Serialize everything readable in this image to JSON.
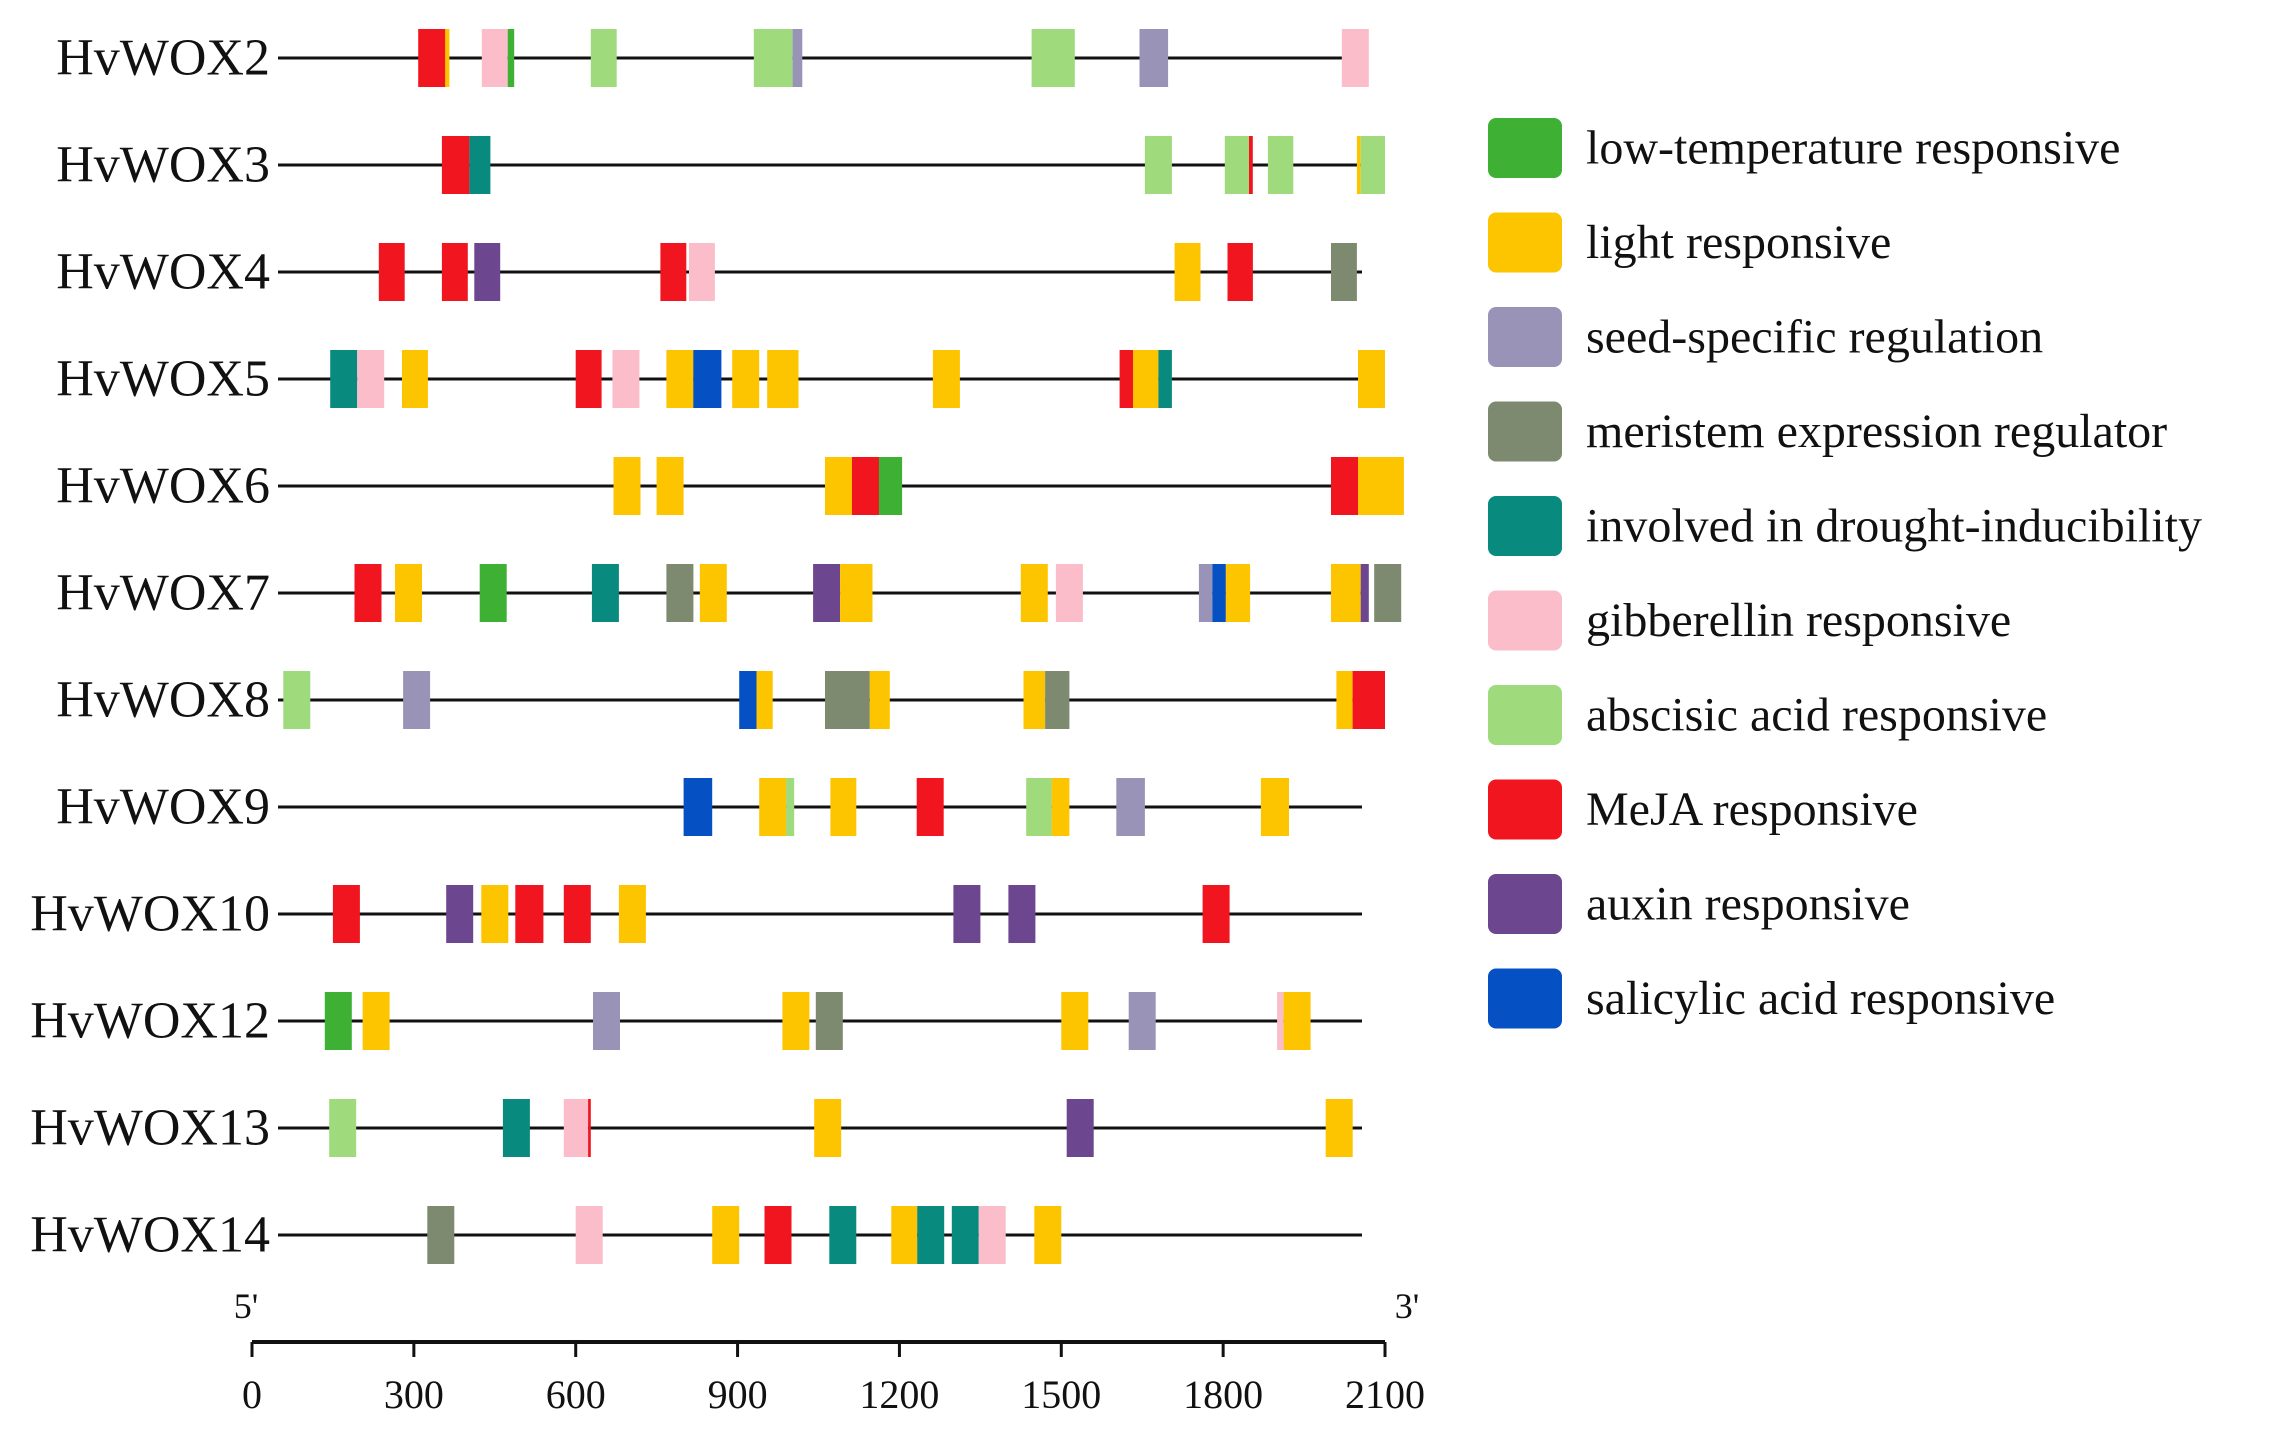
{
  "axis": {
    "start_label": "5'",
    "end_label": "3'",
    "range": [
      0,
      2100
    ],
    "ticks": [
      "0",
      "300",
      "600",
      "900",
      "1200",
      "1500",
      "1800",
      "2100"
    ]
  },
  "categories": [
    {
      "key": "lowtemp",
      "label": "low-temperature responsive",
      "color": "#3EB135"
    },
    {
      "key": "light",
      "label": "light responsive",
      "color": "#FDC400"
    },
    {
      "key": "seed",
      "label": "seed-specific regulation",
      "color": "#9993B8"
    },
    {
      "key": "meristem",
      "label": "meristem expression regulator",
      "color": "#7D8A70"
    },
    {
      "key": "drought",
      "label": "involved in drought-inducibility",
      "color": "#098A7E"
    },
    {
      "key": "gibberellin",
      "label": "gibberellin responsive",
      "color": "#FCBDCB"
    },
    {
      "key": "aba",
      "label": "abscisic acid responsive",
      "color": "#9FDA7C"
    },
    {
      "key": "meja",
      "label": "MeJA responsive",
      "color": "#F0151F"
    },
    {
      "key": "auxin",
      "label": "auxin responsive",
      "color": "#6C468E"
    },
    {
      "key": "salicylic",
      "label": "salicylic acid responsive",
      "color": "#0550C3"
    }
  ],
  "genes": [
    {
      "name": "HvWOX2",
      "elements": [
        {
          "c": "meja",
          "s": 308,
          "e": 365
        },
        {
          "c": "light",
          "s": 358,
          "e": 366
        },
        {
          "c": "gibberellin",
          "s": 426,
          "e": 474
        },
        {
          "c": "lowtemp",
          "s": 474,
          "e": 486
        },
        {
          "c": "aba",
          "s": 628,
          "e": 676
        },
        {
          "c": "aba",
          "s": 930,
          "e": 1002
        },
        {
          "c": "seed",
          "s": 1002,
          "e": 1020
        },
        {
          "c": "aba",
          "s": 1445,
          "e": 1525
        },
        {
          "c": "seed",
          "s": 1645,
          "e": 1698
        },
        {
          "c": "gibberellin",
          "s": 2020,
          "e": 2070
        }
      ]
    },
    {
      "name": "HvWOX3",
      "elements": [
        {
          "c": "meja",
          "s": 352,
          "e": 403
        },
        {
          "c": "drought",
          "s": 403,
          "e": 442
        },
        {
          "c": "aba",
          "s": 1655,
          "e": 1705
        },
        {
          "c": "aba",
          "s": 1803,
          "e": 1848
        },
        {
          "c": "meja",
          "s": 1848,
          "e": 1855
        },
        {
          "c": "aba",
          "s": 1883,
          "e": 1930
        },
        {
          "c": "light",
          "s": 2048,
          "e": 2055
        },
        {
          "c": "aba",
          "s": 2055,
          "e": 2100
        }
      ]
    },
    {
      "name": "HvWOX4",
      "elements": [
        {
          "c": "meja",
          "s": 235,
          "e": 283
        },
        {
          "c": "meja",
          "s": 352,
          "e": 400
        },
        {
          "c": "auxin",
          "s": 412,
          "e": 460
        },
        {
          "c": "meja",
          "s": 757,
          "e": 805
        },
        {
          "c": "gibberellin",
          "s": 810,
          "e": 858
        },
        {
          "c": "light",
          "s": 1710,
          "e": 1758
        },
        {
          "c": "meja",
          "s": 1808,
          "e": 1855
        },
        {
          "c": "meristem",
          "s": 2000,
          "e": 2048
        }
      ]
    },
    {
      "name": "HvWOX5",
      "elements": [
        {
          "c": "drought",
          "s": 145,
          "e": 195
        },
        {
          "c": "gibberellin",
          "s": 195,
          "e": 245
        },
        {
          "c": "light",
          "s": 278,
          "e": 326
        },
        {
          "c": "meja",
          "s": 600,
          "e": 648
        },
        {
          "c": "gibberellin",
          "s": 668,
          "e": 718
        },
        {
          "c": "light",
          "s": 768,
          "e": 818
        },
        {
          "c": "salicylic",
          "s": 818,
          "e": 870
        },
        {
          "c": "light",
          "s": 890,
          "e": 940
        },
        {
          "c": "light",
          "s": 955,
          "e": 1013
        },
        {
          "c": "light",
          "s": 1262,
          "e": 1312
        },
        {
          "c": "meja",
          "s": 1608,
          "e": 1633
        },
        {
          "c": "light",
          "s": 1633,
          "e": 1680
        },
        {
          "c": "drought",
          "s": 1680,
          "e": 1705
        },
        {
          "c": "light",
          "s": 2050,
          "e": 2100
        }
      ]
    },
    {
      "name": "HvWOX6",
      "elements": [
        {
          "c": "light",
          "s": 670,
          "e": 720
        },
        {
          "c": "light",
          "s": 750,
          "e": 800
        },
        {
          "c": "light",
          "s": 1062,
          "e": 1112
        },
        {
          "c": "meja",
          "s": 1112,
          "e": 1162
        },
        {
          "c": "lowtemp",
          "s": 1162,
          "e": 1205
        },
        {
          "c": "meja",
          "s": 2000,
          "e": 2050
        },
        {
          "c": "light",
          "s": 2050,
          "e": 2135
        }
      ]
    },
    {
      "name": "HvWOX7",
      "elements": [
        {
          "c": "meja",
          "s": 190,
          "e": 240
        },
        {
          "c": "light",
          "s": 265,
          "e": 315
        },
        {
          "c": "lowtemp",
          "s": 422,
          "e": 472
        },
        {
          "c": "drought",
          "s": 630,
          "e": 680
        },
        {
          "c": "meristem",
          "s": 768,
          "e": 818
        },
        {
          "c": "light",
          "s": 830,
          "e": 880
        },
        {
          "c": "auxin",
          "s": 1040,
          "e": 1090
        },
        {
          "c": "light",
          "s": 1090,
          "e": 1150
        },
        {
          "c": "light",
          "s": 1425,
          "e": 1475
        },
        {
          "c": "gibberellin",
          "s": 1490,
          "e": 1540
        },
        {
          "c": "seed",
          "s": 1755,
          "e": 1780
        },
        {
          "c": "salicylic",
          "s": 1780,
          "e": 1805
        },
        {
          "c": "light",
          "s": 1805,
          "e": 1850
        },
        {
          "c": "light",
          "s": 2000,
          "e": 2055
        },
        {
          "c": "auxin",
          "s": 2055,
          "e": 2070
        },
        {
          "c": "meristem",
          "s": 2080,
          "e": 2130
        }
      ]
    },
    {
      "name": "HvWOX8",
      "elements": [
        {
          "c": "aba",
          "s": 58,
          "e": 108
        },
        {
          "c": "seed",
          "s": 280,
          "e": 330
        },
        {
          "c": "salicylic",
          "s": 903,
          "e": 935
        },
        {
          "c": "light",
          "s": 935,
          "e": 965
        },
        {
          "c": "meristem",
          "s": 1062,
          "e": 1145
        },
        {
          "c": "light",
          "s": 1145,
          "e": 1182
        },
        {
          "c": "light",
          "s": 1430,
          "e": 1470
        },
        {
          "c": "meristem",
          "s": 1470,
          "e": 1515
        },
        {
          "c": "light",
          "s": 2010,
          "e": 2040
        },
        {
          "c": "meja",
          "s": 2040,
          "e": 2100
        }
      ]
    },
    {
      "name": "HvWOX9",
      "elements": [
        {
          "c": "salicylic",
          "s": 800,
          "e": 853
        },
        {
          "c": "light",
          "s": 940,
          "e": 990
        },
        {
          "c": "aba",
          "s": 990,
          "e": 1005
        },
        {
          "c": "light",
          "s": 1072,
          "e": 1120
        },
        {
          "c": "meja",
          "s": 1232,
          "e": 1282
        },
        {
          "c": "aba",
          "s": 1435,
          "e": 1482
        },
        {
          "c": "light",
          "s": 1482,
          "e": 1515
        },
        {
          "c": "seed",
          "s": 1602,
          "e": 1655
        },
        {
          "c": "light",
          "s": 1870,
          "e": 1922
        }
      ]
    },
    {
      "name": "HvWOX10",
      "elements": [
        {
          "c": "meja",
          "s": 150,
          "e": 200
        },
        {
          "c": "auxin",
          "s": 360,
          "e": 410
        },
        {
          "c": "light",
          "s": 425,
          "e": 475
        },
        {
          "c": "meja",
          "s": 488,
          "e": 540
        },
        {
          "c": "meja",
          "s": 578,
          "e": 628
        },
        {
          "c": "light",
          "s": 680,
          "e": 730
        },
        {
          "c": "auxin",
          "s": 1300,
          "e": 1350
        },
        {
          "c": "auxin",
          "s": 1402,
          "e": 1452
        },
        {
          "c": "meja",
          "s": 1762,
          "e": 1812
        }
      ]
    },
    {
      "name": "HvWOX12",
      "elements": [
        {
          "c": "lowtemp",
          "s": 135,
          "e": 185
        },
        {
          "c": "light",
          "s": 205,
          "e": 255
        },
        {
          "c": "seed",
          "s": 632,
          "e": 682
        },
        {
          "c": "light",
          "s": 983,
          "e": 1033
        },
        {
          "c": "meristem",
          "s": 1045,
          "e": 1095
        },
        {
          "c": "light",
          "s": 1500,
          "e": 1550
        },
        {
          "c": "seed",
          "s": 1625,
          "e": 1675
        },
        {
          "c": "gibberellin",
          "s": 1900,
          "e": 1912
        },
        {
          "c": "light",
          "s": 1912,
          "e": 1962
        }
      ]
    },
    {
      "name": "HvWOX13",
      "elements": [
        {
          "c": "aba",
          "s": 143,
          "e": 193
        },
        {
          "c": "drought",
          "s": 465,
          "e": 515
        },
        {
          "c": "gibberellin",
          "s": 578,
          "e": 623
        },
        {
          "c": "meja",
          "s": 623,
          "e": 628
        },
        {
          "c": "light",
          "s": 1042,
          "e": 1092
        },
        {
          "c": "auxin",
          "s": 1510,
          "e": 1560
        },
        {
          "c": "light",
          "s": 1990,
          "e": 2040
        }
      ]
    },
    {
      "name": "HvWOX14",
      "elements": [
        {
          "c": "meristem",
          "s": 325,
          "e": 375
        },
        {
          "c": "gibberellin",
          "s": 600,
          "e": 650
        },
        {
          "c": "light",
          "s": 853,
          "e": 903
        },
        {
          "c": "meja",
          "s": 950,
          "e": 1000
        },
        {
          "c": "drought",
          "s": 1070,
          "e": 1120
        },
        {
          "c": "light",
          "s": 1185,
          "e": 1233
        },
        {
          "c": "drought",
          "s": 1233,
          "e": 1283
        },
        {
          "c": "drought",
          "s": 1297,
          "e": 1347
        },
        {
          "c": "gibberellin",
          "s": 1347,
          "e": 1397
        },
        {
          "c": "light",
          "s": 1450,
          "e": 1500
        }
      ]
    }
  ]
}
